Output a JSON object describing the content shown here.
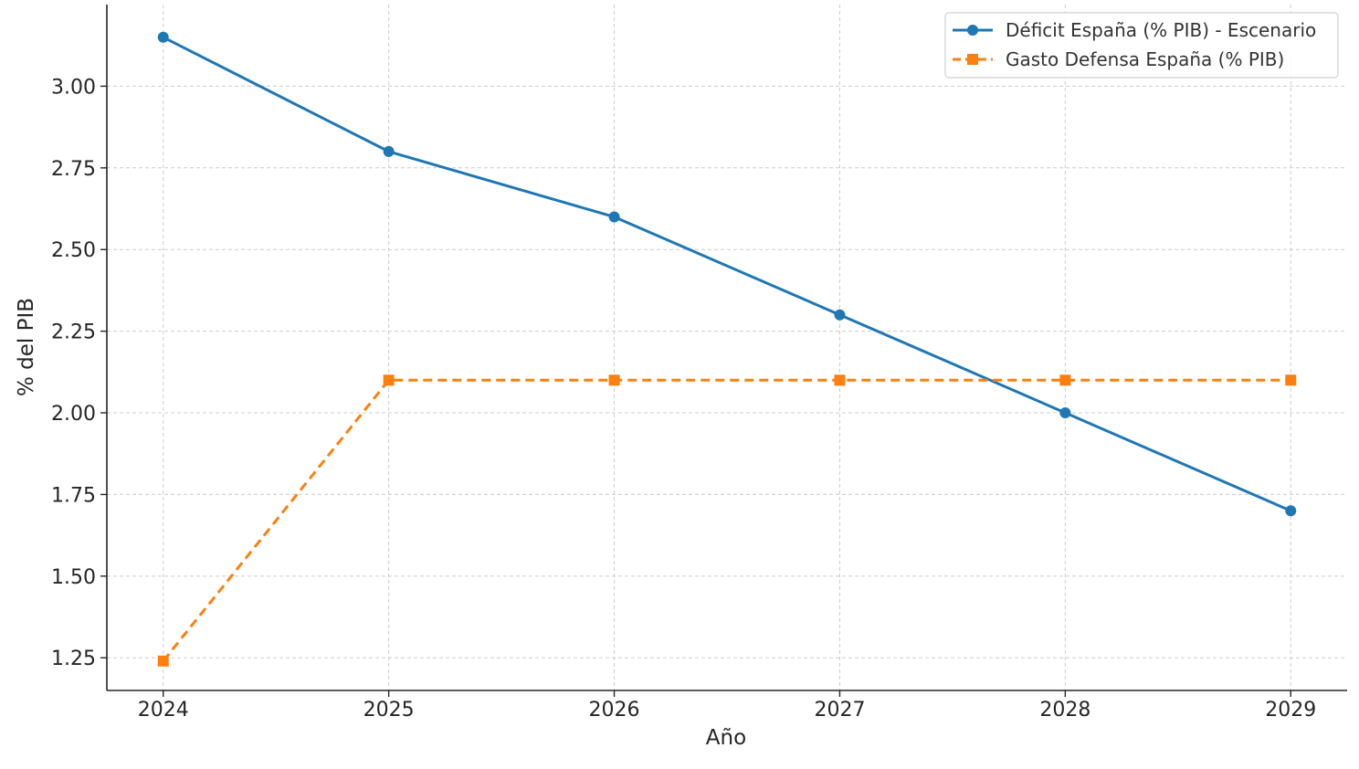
{
  "chart_data": {
    "type": "line",
    "title": "",
    "xlabel": "Año",
    "ylabel": "% del PIB",
    "x": [
      2024,
      2025,
      2026,
      2027,
      2028,
      2029
    ],
    "x_tick_labels": [
      "2024",
      "2025",
      "2026",
      "2027",
      "2028",
      "2029"
    ],
    "xlim": [
      2023.75,
      2029.25
    ],
    "ylim": [
      1.15,
      3.25
    ],
    "y_ticks": [
      1.25,
      1.5,
      1.75,
      2.0,
      2.25,
      2.5,
      2.75,
      3.0
    ],
    "y_tick_labels": [
      "1.25",
      "1.50",
      "1.75",
      "2.00",
      "2.25",
      "2.50",
      "2.75",
      "3.00"
    ],
    "grid": true,
    "legend_position": "top-right",
    "series": [
      {
        "name": "Déficit España (% PIB) - Escenario",
        "values": [
          3.15,
          2.8,
          2.6,
          2.3,
          2.0,
          1.7
        ],
        "color": "#1f77b4",
        "marker": "circle",
        "line_style": "solid"
      },
      {
        "name": "Gasto Defensa España (% PIB)",
        "values": [
          1.24,
          2.1,
          2.1,
          2.1,
          2.1,
          2.1
        ],
        "color": "#ff7f0e",
        "marker": "square",
        "line_style": "dashed"
      }
    ]
  }
}
